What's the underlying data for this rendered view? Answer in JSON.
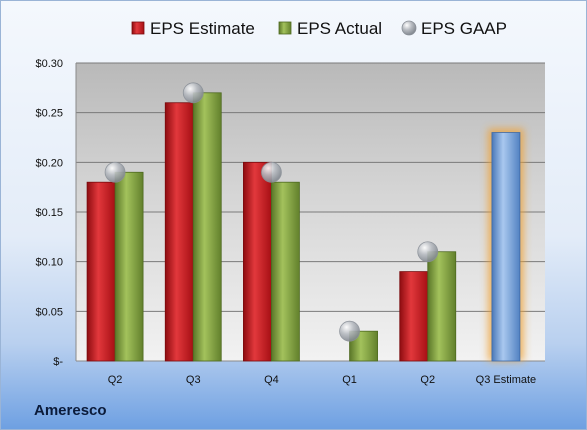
{
  "company": "Ameresco",
  "chart_data": {
    "type": "bar",
    "categories": [
      "Q2",
      "Q3",
      "Q4",
      "Q1",
      "Q2",
      "Q3 Estimate"
    ],
    "series": [
      {
        "name": "EPS Estimate",
        "color": "#c8151b",
        "values": [
          0.18,
          0.26,
          0.2,
          null,
          0.09,
          null
        ]
      },
      {
        "name": "EPS Actual",
        "color": "#7a9a3c",
        "values": [
          0.19,
          0.27,
          0.18,
          0.03,
          0.11,
          null
        ]
      },
      {
        "name": "EPS GAAP",
        "color": "#9aa0a6",
        "marker": "sphere",
        "values": [
          0.19,
          0.27,
          0.19,
          0.03,
          0.11,
          null
        ]
      }
    ],
    "projection": {
      "category": "Q3 Estimate",
      "value": 0.23,
      "color": "#6c9bd6",
      "glow": "#f0a030"
    },
    "y_ticks": [
      "$-",
      "$0.05",
      "$0.10",
      "$0.15",
      "$0.20",
      "$0.25",
      "$0.30"
    ],
    "ylim": [
      0,
      0.3
    ],
    "legend_position": "top",
    "grid": true
  }
}
